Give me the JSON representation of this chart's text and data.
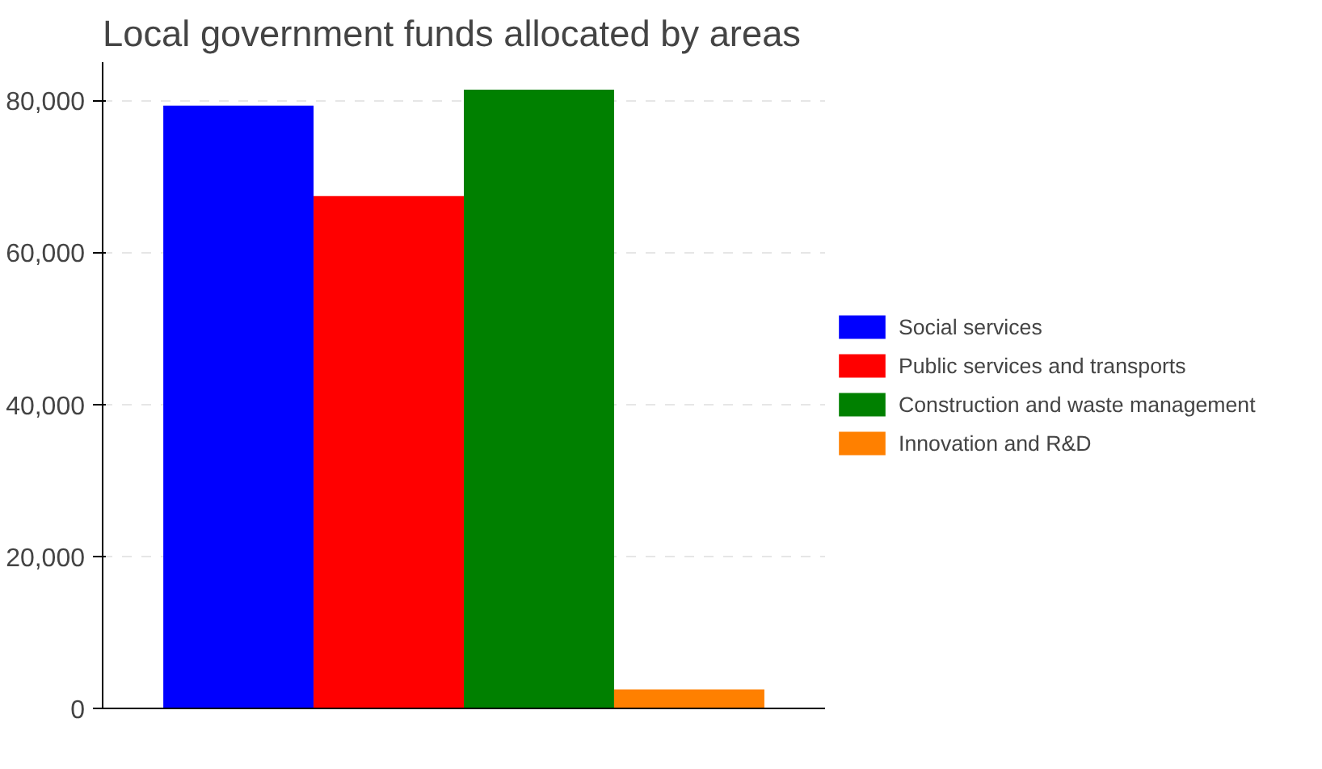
{
  "chart_data": {
    "type": "bar",
    "title": "Local government funds allocated by areas",
    "categories": [
      null
    ],
    "series": [
      {
        "name": "Social services",
        "color": "#0000ff",
        "values": [
          79300
        ]
      },
      {
        "name": "Public services and transports",
        "color": "#ff0000",
        "values": [
          67400
        ]
      },
      {
        "name": "Construction and waste management",
        "color": "#008000",
        "values": [
          81400
        ]
      },
      {
        "name": "Innovation and R&D",
        "color": "#ff8000",
        "values": [
          2500
        ]
      }
    ],
    "ylim": [
      0,
      85000
    ],
    "yticks": [
      {
        "value": 0,
        "label": "0"
      },
      {
        "value": 20000,
        "label": "20,000"
      },
      {
        "value": 40000,
        "label": "40,000"
      },
      {
        "value": 60000,
        "label": "60,000"
      },
      {
        "value": 80000,
        "label": "80,000"
      }
    ],
    "grid": "y",
    "legend": "right"
  }
}
